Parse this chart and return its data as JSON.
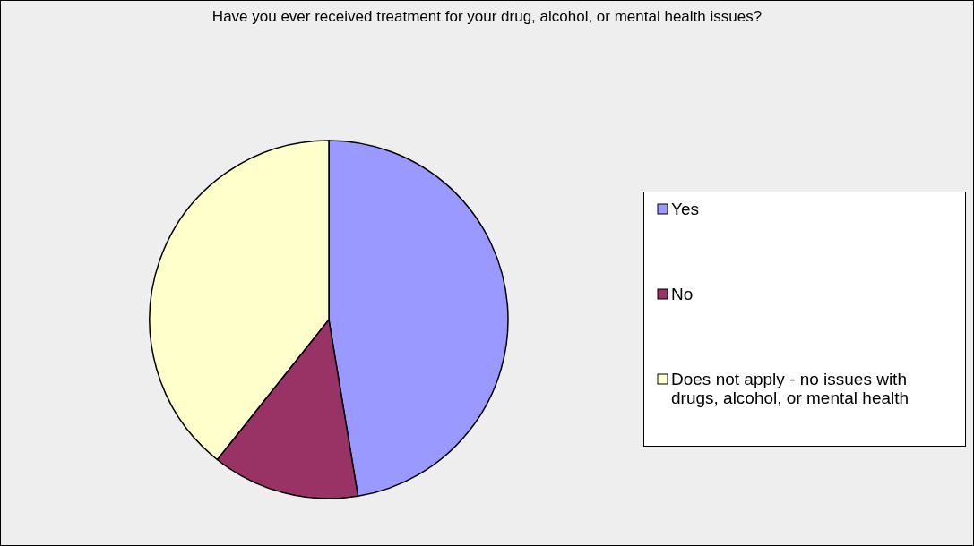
{
  "chart_data": {
    "type": "pie",
    "title": "Have you ever received treatment for your drug, alcohol, or mental health issues?",
    "categories": [
      "Yes",
      "No",
      "Does not apply - no issues with drugs, alcohol, or mental health"
    ],
    "values": [
      47.4,
      13.3,
      39.3
    ],
    "colors": [
      "#9999ff",
      "#993366",
      "#ffffcc"
    ],
    "legend": "right"
  }
}
